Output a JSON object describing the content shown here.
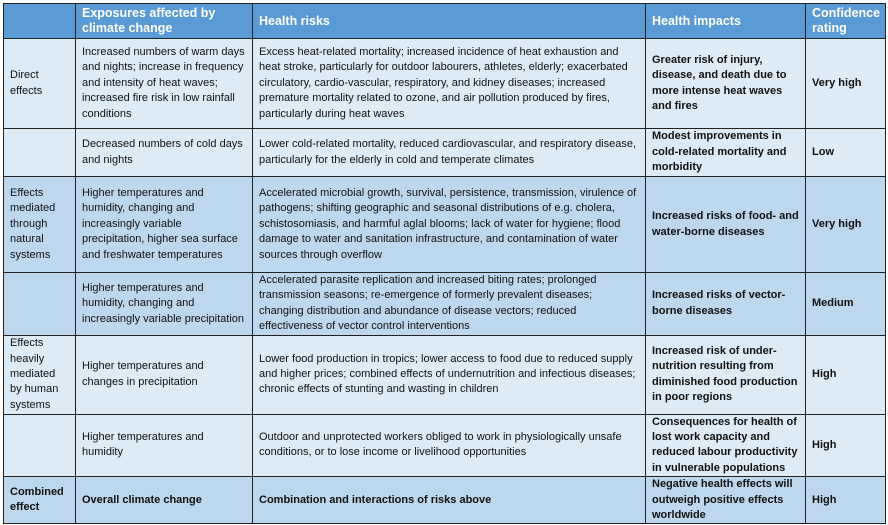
{
  "colors": {
    "header": "#5B9BD5",
    "row_light": "#DDEBF7",
    "row_dark": "#BDD7EE"
  },
  "headers": [
    "",
    "Exposures affected by climate change",
    "Health risks",
    "Health impacts",
    "Confidence rating"
  ],
  "rows": [
    {
      "category": "Direct effects",
      "exposure": "Increased numbers of warm days and nights; increase in frequency and intensity of heat waves; increased fire risk in low rainfall conditions",
      "risks": "Excess heat-related mortality; increased incidence of heat exhaustion and heat stroke, particularly for outdoor labourers, athletes, elderly; exacerbated circulatory, cardio-vascular, respiratory, and kidney diseases; increased premature mortality related to ozone, and air pollution produced by fires, particularly during heat waves",
      "impacts": "Greater risk of injury, disease, and death due to more intense heat waves and fires",
      "confidence": "Very high"
    },
    {
      "category": "",
      "exposure": "Decreased numbers of cold days and nights",
      "risks": "Lower cold-related mortality, reduced cardiovascular, and respiratory disease, particularly for the elderly in cold and temperate climates",
      "impacts": "Modest improvements in cold-related mortality and morbidity",
      "confidence": "Low"
    },
    {
      "category": "Effects mediated through natural systems",
      "exposure": "Higher temperatures and humidity, changing and increasingly variable precipitation, higher sea surface and freshwater temperatures",
      "risks": "Accelerated microbial growth, survival, persistence, transmission, virulence of pathogens; shifting geographic and seasonal distributions of e.g. cholera, schistosomiasis, and harmful aglal blooms; lack of water for hygiene; flood damage to water and sanitation infrastructure, and contamination of water sources through overflow",
      "impacts": "Increased risks of food- and water-borne diseases",
      "confidence": "Very high"
    },
    {
      "category": "",
      "exposure": "Higher temperatures and humidity, changing and increasingly variable precipitation",
      "risks": "Accelerated parasite replication and increased biting rates; prolonged transmission seasons; re-emergence of formerly prevalent diseases; changing distribution and abundance of disease vectors; reduced effectiveness of vector control interventions",
      "impacts": "Increased risks of vector-borne diseases",
      "confidence": "Medium"
    },
    {
      "category": "Effects heavily mediated by human systems",
      "exposure": "Higher temperatures and changes in precipitation",
      "risks": "Lower food production in tropics; lower access to food due to reduced supply and higher prices; combined effects of undernutrition and infectious diseases; chronic effects of stunting and wasting in children",
      "impacts": "Increased risk of under-nutrition resulting from diminished food production in poor regions",
      "confidence": "High"
    },
    {
      "category": "",
      "exposure": "Higher temperatures and humidity",
      "risks": "Outdoor and unprotected workers obliged to work in physiologically unsafe conditions, or to lose income or livelihood opportunities",
      "impacts": "Consequences for health of lost work capacity and reduced labour productivity in vulnerable populations",
      "confidence": "High"
    },
    {
      "category": "Combined effect",
      "exposure": "Overall climate change",
      "risks": "Combination and interactions of risks above",
      "impacts": "Negative health effects will outweigh positive effects worldwide",
      "confidence": "High"
    }
  ]
}
